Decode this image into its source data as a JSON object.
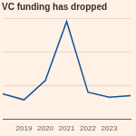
{
  "chart_data": {
    "type": "line",
    "title": "VC funding has dropped",
    "categories": [
      null,
      "2019",
      "2020",
      "2021",
      "2022",
      "2023",
      null
    ],
    "values": [
      30,
      23,
      46,
      116,
      32,
      26,
      28
    ],
    "color": "#0f5499",
    "ylim": [
      0,
      120
    ],
    "yticks": [
      0,
      40,
      80,
      120
    ],
    "grid": true,
    "tick_labels": "x"
  }
}
